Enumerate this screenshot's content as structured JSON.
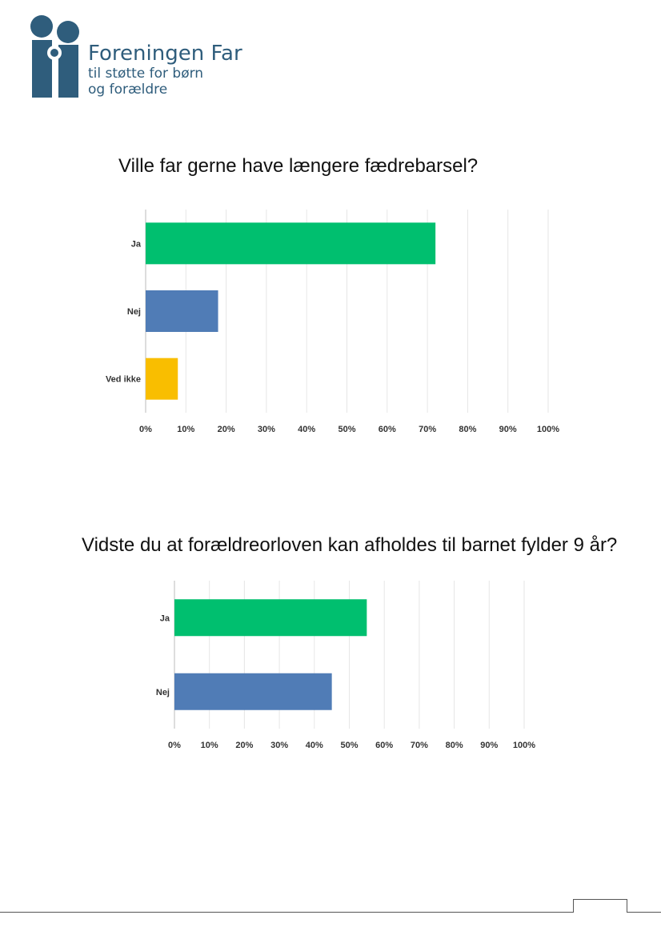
{
  "logo": {
    "name": "Foreningen Far",
    "tagline_line1": "til støtte for børn",
    "tagline_line2": "og forældre",
    "color": "#2f5d7c"
  },
  "chart_data": [
    {
      "type": "bar",
      "orientation": "horizontal",
      "title": "Ville far gerne have længere fædrebarsel?",
      "categories": [
        "Ja",
        "Nej",
        "Ved ikke"
      ],
      "values": [
        72,
        18,
        8
      ],
      "colors": [
        "#00bf6f",
        "#507cb6",
        "#f9be00"
      ],
      "xlim": [
        0,
        100
      ],
      "xticks": [
        "0%",
        "10%",
        "20%",
        "30%",
        "40%",
        "50%",
        "60%",
        "70%",
        "80%",
        "90%",
        "100%"
      ],
      "grid": true
    },
    {
      "type": "bar",
      "orientation": "horizontal",
      "title": "Vidste du at forældreorloven kan afholdes til barnet fylder 9 år?",
      "categories": [
        "Ja",
        "Nej"
      ],
      "values": [
        55,
        45
      ],
      "colors": [
        "#00bf6f",
        "#507cb6"
      ],
      "xlim": [
        0,
        100
      ],
      "xticks": [
        "0%",
        "10%",
        "20%",
        "30%",
        "40%",
        "50%",
        "60%",
        "70%",
        "80%",
        "90%",
        "100%"
      ],
      "grid": true
    }
  ]
}
